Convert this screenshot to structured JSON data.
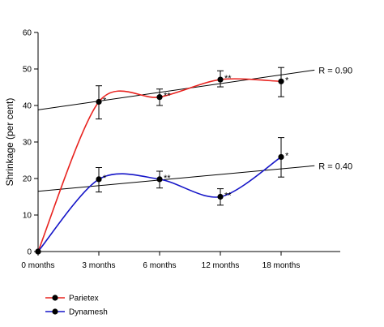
{
  "chart_data": {
    "type": "line",
    "ylabel": "Shrinkage (per cent)",
    "xlabel": "",
    "ylim": [
      0,
      60
    ],
    "y_ticks": [
      0,
      10,
      20,
      30,
      40,
      50,
      60
    ],
    "categories": [
      "0 months",
      "3 months",
      "6 months",
      "12 months",
      "18 months"
    ],
    "grid": false,
    "legend_position": "bottom-left",
    "series": [
      {
        "name": "Parietex",
        "color": "#e8231f",
        "values": [
          0,
          41,
          42.3,
          47.1,
          46.6
        ],
        "err_high": [
          null,
          45.4,
          44.5,
          49.5,
          50.4
        ],
        "err_low": [
          null,
          36.3,
          40.0,
          45.1,
          42.4
        ],
        "annotations": [
          "",
          "*",
          "**",
          "**",
          "*"
        ]
      },
      {
        "name": "Dynamesh",
        "color": "#1515c8",
        "values": [
          0,
          19.8,
          19.8,
          15.0,
          25.9
        ],
        "err_high": [
          null,
          23.0,
          22.0,
          17.2,
          31.2
        ],
        "err_low": [
          null,
          16.3,
          17.4,
          12.7,
          20.4
        ],
        "annotations": [
          "",
          "*",
          "**",
          "**",
          "*"
        ]
      }
    ],
    "trendlines": [
      {
        "label": "R = 0.90",
        "from": [
          0,
          38.8
        ],
        "to": [
          4.55,
          49.7
        ]
      },
      {
        "label": "R = 0.40",
        "from": [
          0,
          16.5
        ],
        "to": [
          4.55,
          23.5
        ]
      }
    ]
  }
}
